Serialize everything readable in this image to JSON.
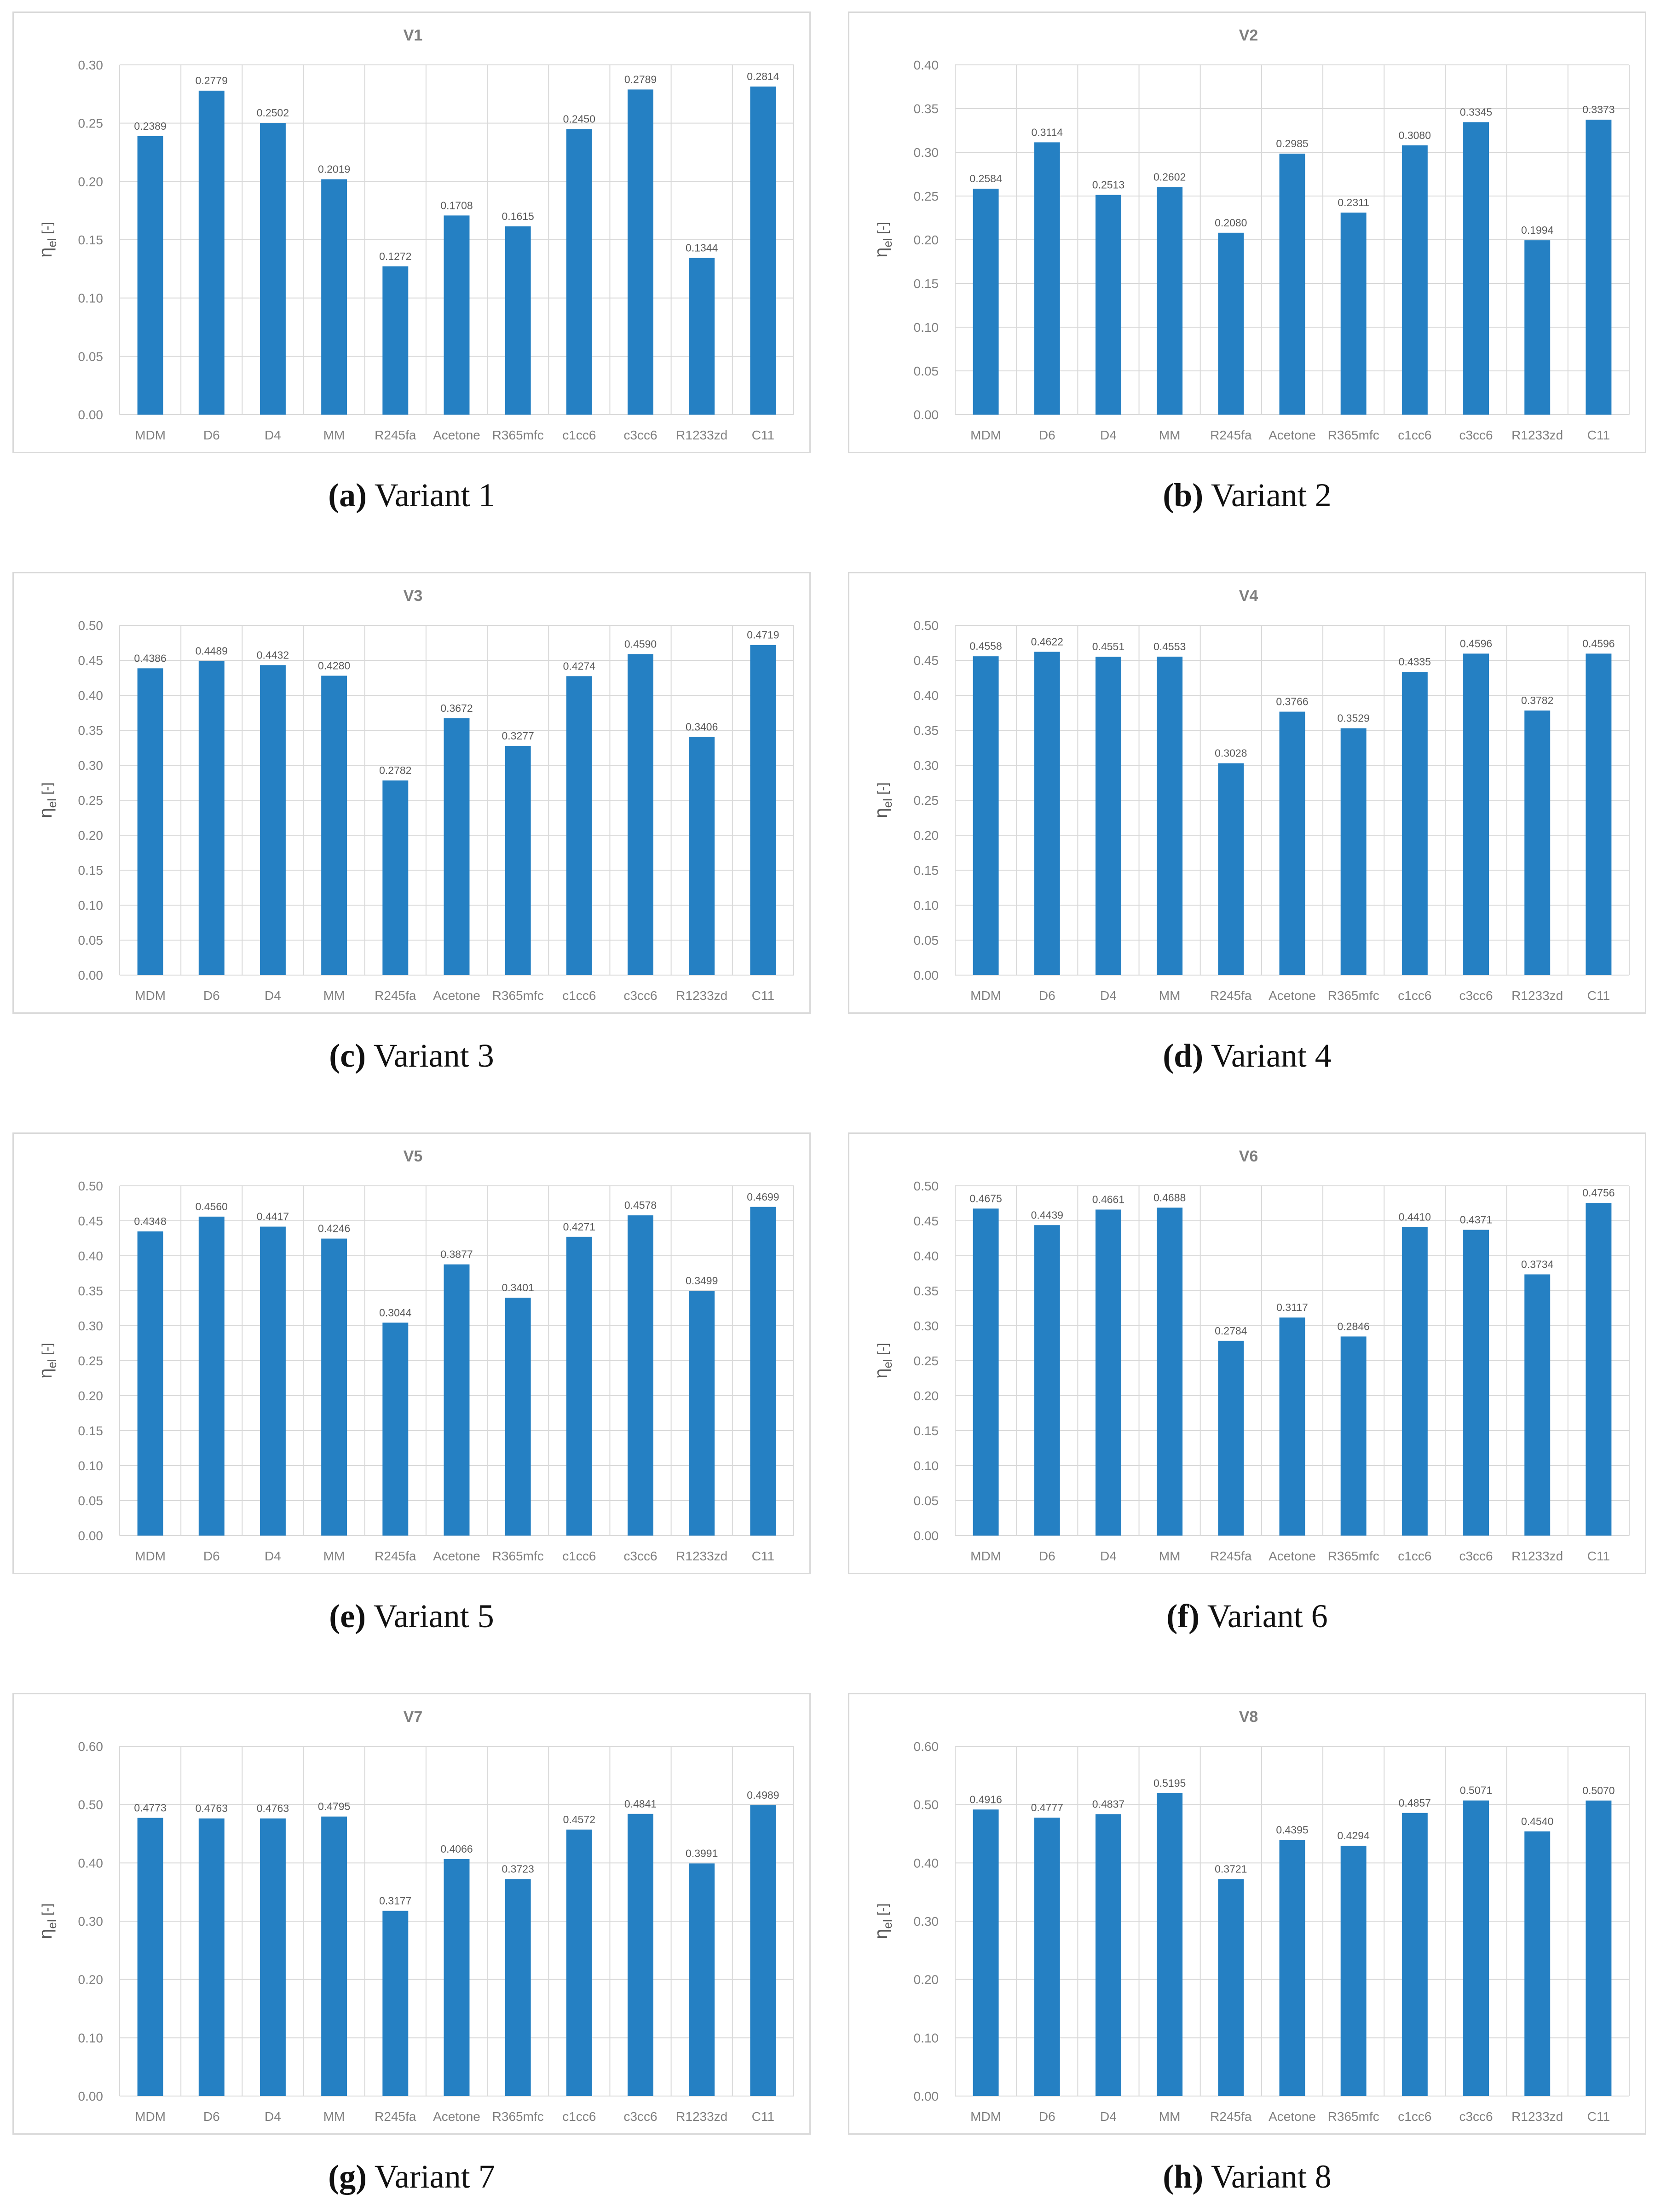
{
  "colors": {
    "bar": "#2580c3",
    "grid": "#d9d9d9",
    "axis_text": "#808080",
    "title_text": "#7f7f7f"
  },
  "panels": [
    {
      "caption_letter": "(a)",
      "caption_text": " Variant 1"
    },
    {
      "caption_letter": "(b)",
      "caption_text": " Variant 2"
    },
    {
      "caption_letter": "(c)",
      "caption_text": " Variant 3"
    },
    {
      "caption_letter": "(d)",
      "caption_text": " Variant 4"
    },
    {
      "caption_letter": "(e)",
      "caption_text": " Variant 5"
    },
    {
      "caption_letter": "(f)",
      "caption_text": " Variant 6"
    },
    {
      "caption_letter": "(g)",
      "caption_text": " Variant 7"
    },
    {
      "caption_letter": "(h)",
      "caption_text": " Variant 8"
    }
  ],
  "chart_data": [
    {
      "type": "bar",
      "title": "V1",
      "ylabel": "η_el [-]",
      "ylabel_main": "η",
      "ylabel_sub": "el",
      "ylabel_unit": "[-]",
      "categories": [
        "MDM",
        "D6",
        "D4",
        "MM",
        "R245fa",
        "Acetone",
        "R365mfc",
        "c1cc6",
        "c3cc6",
        "R1233zd",
        "C11"
      ],
      "values": [
        0.2389,
        0.2779,
        0.2502,
        0.2019,
        0.1272,
        0.1708,
        0.1615,
        0.245,
        0.2789,
        0.1344,
        0.2814
      ],
      "value_labels": [
        "0.2389",
        "0.2779",
        "0.2502",
        "0.2019",
        "0.1272",
        "0.1708",
        "0.1615",
        "0.2450",
        "0.2789",
        "0.1344",
        "0.2814"
      ],
      "ylim": [
        0,
        0.3
      ],
      "yticks": [
        "0.00",
        "0.05",
        "0.10",
        "0.15",
        "0.20",
        "0.25",
        "0.30"
      ],
      "grid": true
    },
    {
      "type": "bar",
      "title": "V2",
      "ylabel": "η_el [-]",
      "ylabel_main": "η",
      "ylabel_sub": "el",
      "ylabel_unit": "[-]",
      "categories": [
        "MDM",
        "D6",
        "D4",
        "MM",
        "R245fa",
        "Acetone",
        "R365mfc",
        "c1cc6",
        "c3cc6",
        "R1233zd",
        "C11"
      ],
      "values": [
        0.2584,
        0.3114,
        0.2513,
        0.2602,
        0.208,
        0.2985,
        0.2311,
        0.308,
        0.3345,
        0.1994,
        0.3373
      ],
      "value_labels": [
        "0.2584",
        "0.3114",
        "0.2513",
        "0.2602",
        "0.2080",
        "0.2985",
        "0.2311",
        "0.3080",
        "0.3345",
        "0.1994",
        "0.3373"
      ],
      "ylim": [
        0,
        0.4
      ],
      "yticks": [
        "0.00",
        "0.05",
        "0.10",
        "0.15",
        "0.20",
        "0.25",
        "0.30",
        "0.35",
        "0.40"
      ],
      "grid": true
    },
    {
      "type": "bar",
      "title": "V3",
      "ylabel": "η_el [-]",
      "ylabel_main": "η",
      "ylabel_sub": "el",
      "ylabel_unit": "[-]",
      "categories": [
        "MDM",
        "D6",
        "D4",
        "MM",
        "R245fa",
        "Acetone",
        "R365mfc",
        "c1cc6",
        "c3cc6",
        "R1233zd",
        "C11"
      ],
      "values": [
        0.4386,
        0.4489,
        0.4432,
        0.428,
        0.2782,
        0.3672,
        0.3277,
        0.4274,
        0.459,
        0.3406,
        0.4719
      ],
      "value_labels": [
        "0.4386",
        "0.4489",
        "0.4432",
        "0.4280",
        "0.2782",
        "0.3672",
        "0.3277",
        "0.4274",
        "0.4590",
        "0.3406",
        "0.4719"
      ],
      "ylim": [
        0,
        0.5
      ],
      "yticks": [
        "0.00",
        "0.05",
        "0.10",
        "0.15",
        "0.20",
        "0.25",
        "0.30",
        "0.35",
        "0.40",
        "0.45",
        "0.50"
      ],
      "grid": true
    },
    {
      "type": "bar",
      "title": "V4",
      "ylabel": "η_el [-]",
      "ylabel_main": "η",
      "ylabel_sub": "el",
      "ylabel_unit": "[-]",
      "categories": [
        "MDM",
        "D6",
        "D4",
        "MM",
        "R245fa",
        "Acetone",
        "R365mfc",
        "c1cc6",
        "c3cc6",
        "R1233zd",
        "C11"
      ],
      "values": [
        0.4558,
        0.4622,
        0.4551,
        0.4553,
        0.3028,
        0.3766,
        0.3529,
        0.4335,
        0.4596,
        0.3782,
        0.4596
      ],
      "value_labels": [
        "0.4558",
        "0.4622",
        "0.4551",
        "0.4553",
        "0.3028",
        "0.3766",
        "0.3529",
        "0.4335",
        "0.4596",
        "0.3782",
        "0.4596"
      ],
      "ylim": [
        0,
        0.5
      ],
      "yticks": [
        "0.00",
        "0.05",
        "0.10",
        "0.15",
        "0.20",
        "0.25",
        "0.30",
        "0.35",
        "0.40",
        "0.45",
        "0.50"
      ],
      "grid": true
    },
    {
      "type": "bar",
      "title": "V5",
      "ylabel": "η_el [-]",
      "ylabel_main": "η",
      "ylabel_sub": "el",
      "ylabel_unit": "[-]",
      "categories": [
        "MDM",
        "D6",
        "D4",
        "MM",
        "R245fa",
        "Acetone",
        "R365mfc",
        "c1cc6",
        "c3cc6",
        "R1233zd",
        "C11"
      ],
      "values": [
        0.4348,
        0.456,
        0.4417,
        0.4246,
        0.3044,
        0.3877,
        0.3401,
        0.4271,
        0.4578,
        0.3499,
        0.4699
      ],
      "value_labels": [
        "0.4348",
        "0.4560",
        "0.4417",
        "0.4246",
        "0.3044",
        "0.3877",
        "0.3401",
        "0.4271",
        "0.4578",
        "0.3499",
        "0.4699"
      ],
      "ylim": [
        0,
        0.5
      ],
      "yticks": [
        "0.00",
        "0.05",
        "0.10",
        "0.15",
        "0.20",
        "0.25",
        "0.30",
        "0.35",
        "0.40",
        "0.45",
        "0.50"
      ],
      "grid": true
    },
    {
      "type": "bar",
      "title": "V6",
      "ylabel": "η_el [-]",
      "ylabel_main": "η",
      "ylabel_sub": "el",
      "ylabel_unit": "[-]",
      "categories": [
        "MDM",
        "D6",
        "D4",
        "MM",
        "R245fa",
        "Acetone",
        "R365mfc",
        "c1cc6",
        "c3cc6",
        "R1233zd",
        "C11"
      ],
      "values": [
        0.4675,
        0.4439,
        0.4661,
        0.4688,
        0.2784,
        0.3117,
        0.2846,
        0.441,
        0.4371,
        0.3734,
        0.4756
      ],
      "value_labels": [
        "0.4675",
        "0.4439",
        "0.4661",
        "0.4688",
        "0.2784",
        "0.3117",
        "0.2846",
        "0.4410",
        "0.4371",
        "0.3734",
        "0.4756"
      ],
      "ylim": [
        0,
        0.5
      ],
      "yticks": [
        "0.00",
        "0.05",
        "0.10",
        "0.15",
        "0.20",
        "0.25",
        "0.30",
        "0.35",
        "0.40",
        "0.45",
        "0.50"
      ],
      "grid": true
    },
    {
      "type": "bar",
      "title": "V7",
      "ylabel": "η_el [-]",
      "ylabel_main": "η",
      "ylabel_sub": "el",
      "ylabel_unit": "[-]",
      "categories": [
        "MDM",
        "D6",
        "D4",
        "MM",
        "R245fa",
        "Acetone",
        "R365mfc",
        "c1cc6",
        "c3cc6",
        "R1233zd",
        "C11"
      ],
      "values": [
        0.4773,
        0.4763,
        0.4763,
        0.4795,
        0.3177,
        0.4066,
        0.3723,
        0.4572,
        0.4841,
        0.3991,
        0.4989
      ],
      "value_labels": [
        "0.4773",
        "0.4763",
        "0.4763",
        "0.4795",
        "0.3177",
        "0.4066",
        "0.3723",
        "0.4572",
        "0.4841",
        "0.3991",
        "0.4989"
      ],
      "ylim": [
        0,
        0.6
      ],
      "yticks": [
        "0.00",
        "0.10",
        "0.20",
        "0.30",
        "0.40",
        "0.50",
        "0.60"
      ],
      "grid": true
    },
    {
      "type": "bar",
      "title": "V8",
      "ylabel": "η_el [-]",
      "ylabel_main": "η",
      "ylabel_sub": "el",
      "ylabel_unit": "[-]",
      "categories": [
        "MDM",
        "D6",
        "D4",
        "MM",
        "R245fa",
        "Acetone",
        "R365mfc",
        "c1cc6",
        "c3cc6",
        "R1233zd",
        "C11"
      ],
      "values": [
        0.4916,
        0.4777,
        0.4837,
        0.5195,
        0.3721,
        0.4395,
        0.4294,
        0.4857,
        0.5071,
        0.454,
        0.507
      ],
      "value_labels": [
        "0.4916",
        "0.4777",
        "0.4837",
        "0.5195",
        "0.3721",
        "0.4395",
        "0.4294",
        "0.4857",
        "0.5071",
        "0.4540",
        "0.5070"
      ],
      "ylim": [
        0,
        0.6
      ],
      "yticks": [
        "0.00",
        "0.10",
        "0.20",
        "0.30",
        "0.40",
        "0.50",
        "0.60"
      ],
      "grid": true
    }
  ]
}
